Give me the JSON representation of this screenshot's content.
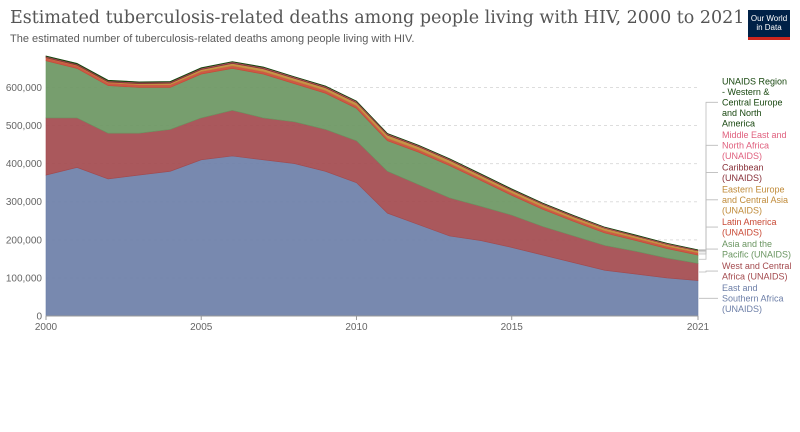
{
  "header": {
    "title": "Estimated tuberculosis-related deaths among people living with HIV, 2000 to 2021",
    "subtitle": "The estimated number of tuberculosis-related deaths among people living with HIV.",
    "logo_line1": "Our World",
    "logo_line2": "in Data"
  },
  "colors": {
    "brand": "#002147",
    "brand_accent": "#ce261e",
    "text": "#555555",
    "grid": "#dddddd"
  },
  "chart_data": {
    "type": "area",
    "stacked": true,
    "title": "Estimated tuberculosis-related deaths among people living with HIV, 2000 to 2021",
    "xlabel": "",
    "ylabel": "",
    "x": [
      2000,
      2001,
      2002,
      2003,
      2004,
      2005,
      2006,
      2007,
      2008,
      2009,
      2010,
      2011,
      2012,
      2013,
      2014,
      2015,
      2016,
      2017,
      2018,
      2019,
      2020,
      2021
    ],
    "xticks": [
      "2000",
      "2005",
      "2010",
      "2015",
      "2021"
    ],
    "xtick_values": [
      2000,
      2005,
      2010,
      2015,
      2021
    ],
    "xlim": [
      2000,
      2021
    ],
    "ylim": [
      0,
      680000
    ],
    "yticks": [
      0,
      100000,
      200000,
      300000,
      400000,
      500000,
      600000
    ],
    "ytick_labels": [
      "0",
      "100,000",
      "200,000",
      "300,000",
      "400,000",
      "500,000",
      "600,000"
    ],
    "grid": true,
    "legend_position": "right",
    "series": [
      {
        "name": "East and Southern Africa (UNAIDS)",
        "label_lines": [
          "East and",
          "Southern Africa",
          "(UNAIDS)"
        ],
        "color": "#6d7fa8",
        "values": [
          370000,
          390000,
          360000,
          370000,
          380000,
          410000,
          420000,
          410000,
          400000,
          380000,
          350000,
          270000,
          240000,
          210000,
          198000,
          180000,
          160000,
          140000,
          120000,
          110000,
          100000,
          93000
        ]
      },
      {
        "name": "West and Central Africa (UNAIDS)",
        "label_lines": [
          "West and Central",
          "Africa (UNAIDS)"
        ],
        "color": "#a34a4e",
        "values": [
          150000,
          130000,
          120000,
          110000,
          110000,
          110000,
          120000,
          110000,
          110000,
          110000,
          110000,
          110000,
          105000,
          100000,
          90000,
          85000,
          75000,
          70000,
          65000,
          60000,
          52000,
          45000
        ]
      },
      {
        "name": "Asia and the Pacific (UNAIDS)",
        "label_lines": [
          "Asia and the",
          "Pacific (UNAIDS)"
        ],
        "color": "#6b9662",
        "values": [
          150000,
          130000,
          125000,
          120000,
          110000,
          115000,
          110000,
          115000,
          100000,
          95000,
          85000,
          80000,
          85000,
          85000,
          68000,
          52000,
          45000,
          38000,
          33000,
          28000,
          25000,
          22000
        ]
      },
      {
        "name": "Latin America (UNAIDS)",
        "label_lines": [
          "Latin America",
          "(UNAIDS)"
        ],
        "color": "#c94a36",
        "values": [
          7000,
          7000,
          7000,
          7000,
          7000,
          7000,
          7000,
          7000,
          7000,
          7000,
          7000,
          6500,
          6500,
          6000,
          6000,
          6000,
          6000,
          6000,
          6000,
          6000,
          6000,
          6000
        ]
      },
      {
        "name": "Eastern Europe and Central Asia (UNAIDS)",
        "label_lines": [
          "Eastern Europe",
          "and Central Asia",
          "(UNAIDS)"
        ],
        "color": "#c08b3a",
        "values": [
          1000,
          1500,
          2000,
          3000,
          4000,
          5000,
          6000,
          7000,
          7000,
          7500,
          8000,
          8500,
          8000,
          8000,
          7500,
          7000,
          7000,
          6500,
          6000,
          5500,
          5000,
          5000
        ]
      },
      {
        "name": "Caribbean (UNAIDS)",
        "label_lines": [
          "Caribbean",
          "(UNAIDS)"
        ],
        "color": "#883039",
        "values": [
          3000,
          3000,
          3000,
          3000,
          3000,
          3000,
          3000,
          3000,
          2500,
          2500,
          2500,
          2500,
          2200,
          2200,
          2000,
          2000,
          1800,
          1800,
          1600,
          1500,
          1400,
          1400
        ]
      },
      {
        "name": "Middle East and North Africa (UNAIDS)",
        "label_lines": [
          "Middle East and",
          "North Africa",
          "(UNAIDS)"
        ],
        "color": "#e0607e",
        "values": [
          500,
          500,
          600,
          600,
          700,
          700,
          800,
          800,
          900,
          900,
          1000,
          1000,
          1000,
          1000,
          1000,
          1000,
          1000,
          1000,
          1000,
          1000,
          1000,
          1000
        ]
      },
      {
        "name": "UNAIDS Region - Western & Central Europe and North America",
        "label_lines": [
          "UNAIDS Region",
          "- Western &",
          "Central Europe",
          "and North",
          "America"
        ],
        "color": "#18470f",
        "values": [
          1500,
          1500,
          1400,
          1400,
          1300,
          1300,
          1200,
          1200,
          1100,
          1100,
          1000,
          1000,
          1000,
          1000,
          1000,
          1000,
          900,
          900,
          900,
          900,
          800,
          800
        ]
      }
    ]
  }
}
